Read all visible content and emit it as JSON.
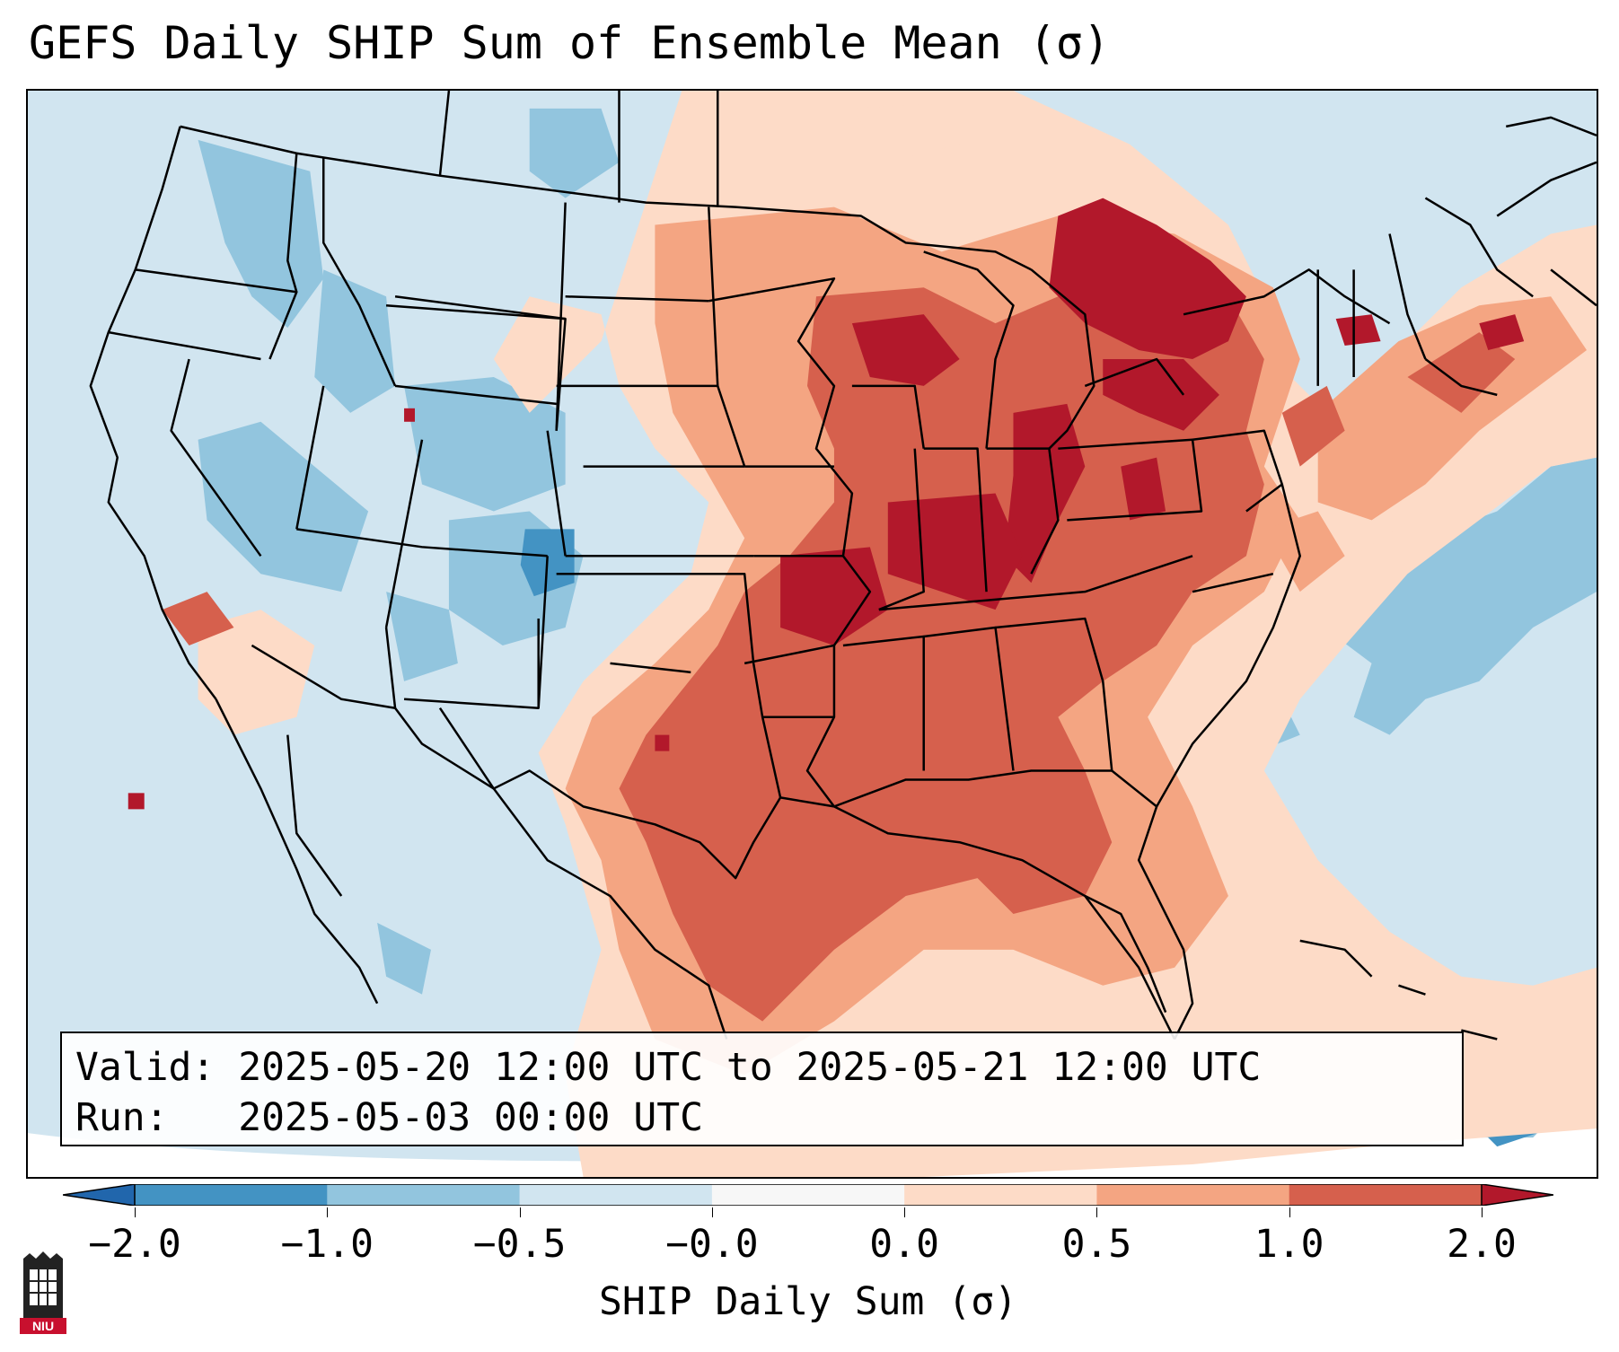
{
  "title": "GEFS Daily SHIP Sum of Ensemble Mean (σ)",
  "info": {
    "valid_line": "Valid: 2025-05-20 12:00 UTC to 2025-05-21 12:00 UTC",
    "run_line": "Run:   2025-05-03 00:00 UTC"
  },
  "colorbar": {
    "label": "SHIP Daily Sum (σ)",
    "ticks": [
      "−2.0",
      "−1.0",
      "−0.5",
      "−0.0",
      "0.0",
      "0.5",
      "1.0",
      "2.0"
    ],
    "bins": [
      {
        "from": -2.0,
        "to": -1.0,
        "color": "#4393c3"
      },
      {
        "from": -1.0,
        "to": -0.5,
        "color": "#92c5de"
      },
      {
        "from": -0.5,
        "to": -0.0,
        "color": "#d1e5f0"
      },
      {
        "from": -0.0,
        "to": 0.0,
        "color": "#f7f7f7"
      },
      {
        "from": 0.0,
        "to": 0.5,
        "color": "#fddbc7"
      },
      {
        "from": 0.5,
        "to": 1.0,
        "color": "#f4a582"
      },
      {
        "from": 1.0,
        "to": 2.0,
        "color": "#d6604d"
      }
    ],
    "under_color": "#2166ac",
    "over_color": "#b2182b"
  },
  "logo": {
    "text": "NIU",
    "color": "#c8102e"
  },
  "map": {
    "projection": "Lambert conformal conic, CONUS",
    "field_colors": {
      "deep_blue": "#4393c3",
      "mid_blue": "#92c5de",
      "light_blue": "#d1e5f0",
      "light_red": "#fddbc7",
      "mid_red": "#f4a582",
      "red": "#d6604d",
      "dark_red": "#b2182b"
    }
  }
}
